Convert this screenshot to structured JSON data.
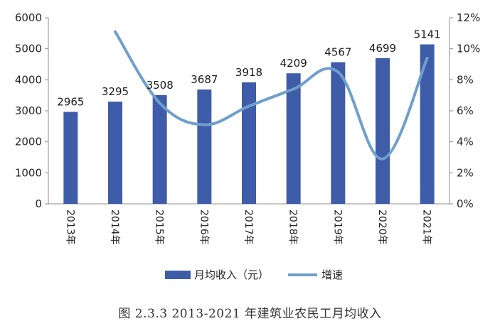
{
  "chart_data": {
    "type": "bar",
    "categories": [
      "2013年",
      "2014年",
      "2015年",
      "2016年",
      "2017年",
      "2018年",
      "2019年",
      "2020年",
      "2021年"
    ],
    "series": [
      {
        "name": "月均收入（元）",
        "type": "bar",
        "axis": "left",
        "values": [
          2965,
          3295,
          3508,
          3687,
          3918,
          4209,
          4567,
          4699,
          5141
        ]
      },
      {
        "name": "增速",
        "type": "line",
        "axis": "right",
        "smooth": true,
        "values": [
          null,
          11.1,
          6.5,
          5.1,
          6.3,
          7.4,
          8.5,
          2.9,
          9.4
        ]
      }
    ],
    "y_left": {
      "min": 0,
      "max": 6000,
      "step": 1000,
      "ticks": [
        "0",
        "1000",
        "2000",
        "3000",
        "4000",
        "5000",
        "6000"
      ]
    },
    "y_right": {
      "min": 0,
      "max": 12,
      "step": 2,
      "ticks": [
        "0%",
        "2%",
        "4%",
        "6%",
        "8%",
        "10%",
        "12%"
      ]
    },
    "data_labels": [
      "2965",
      "3295",
      "3508",
      "3687",
      "3918",
      "4209",
      "4567",
      "4699",
      "5141"
    ],
    "legend": {
      "position": "bottom"
    },
    "grid": false,
    "colors": {
      "bar": "#3f5ca8",
      "line": "#6f9fcb",
      "axis": "#8c8c8c"
    }
  },
  "caption": "图 2.3.3 2013-2021 年建筑业农民工月均收入"
}
